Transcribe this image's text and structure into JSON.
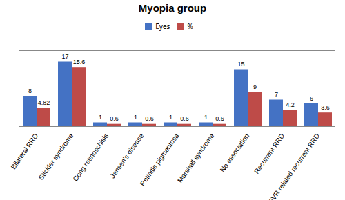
{
  "chart_data": {
    "type": "bar",
    "title": "Myopia group",
    "categories": [
      "Bilateral RRD",
      "Stickler syndrome",
      "Cong retinoschisis",
      "Jensen's disease",
      "Retinitis pigmentosa",
      "Marshall syndrome",
      "No association",
      "Recurrent RRD",
      "PVR related recurrent RRD"
    ],
    "series": [
      {
        "name": "Eyes",
        "color": "#4472C4",
        "values": [
          8,
          17,
          1,
          1,
          1,
          1,
          15,
          7,
          6
        ]
      },
      {
        "name": "%",
        "color": "#BE4B48",
        "values": [
          4.82,
          15.6,
          0.6,
          0.6,
          0.6,
          0.6,
          9,
          4.2,
          3.6
        ]
      }
    ],
    "ylim": [
      0,
      20
    ],
    "yticks": [],
    "tick_labels": "x",
    "data_labels": true,
    "legend": "top"
  }
}
